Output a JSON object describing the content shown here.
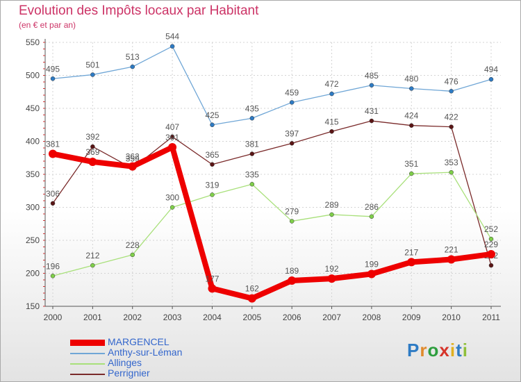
{
  "header": {
    "title": "Evolution des Impôts locaux par Habitant",
    "subtitle": "(en € et par an)"
  },
  "logo": {
    "text": "Proxiti",
    "letters": [
      "P",
      "r",
      "o",
      "x",
      "i",
      "t",
      "i"
    ]
  },
  "colors": {
    "title": "#cc3366",
    "legend_text": "#3366cc",
    "grid": "#d3d3d3",
    "axis": "#555555"
  },
  "chart_data": {
    "type": "line",
    "title": "Evolution des Impôts locaux par Habitant",
    "subtitle": "(en € et par an)",
    "xlabel": "",
    "ylabel": "",
    "categories": [
      "2000",
      "2001",
      "2002",
      "2003",
      "2004",
      "2005",
      "2006",
      "2007",
      "2008",
      "2009",
      "2010",
      "2011"
    ],
    "ylim": [
      150,
      550
    ],
    "yticks": [
      150,
      200,
      250,
      300,
      350,
      400,
      450,
      500,
      550
    ],
    "grid": true,
    "legend_position": "bottom-left",
    "series": [
      {
        "name": "Anthy-sur-Léman",
        "color": "#6fa6d6",
        "point_color": "#2e7bc4",
        "values": [
          495,
          501,
          513,
          544,
          425,
          435,
          459,
          472,
          485,
          480,
          476,
          494
        ]
      },
      {
        "name": "Perrignier",
        "color": "#7a2a2a",
        "point_color": "#5a1515",
        "values": [
          306,
          392,
          359,
          407,
          365,
          381,
          397,
          415,
          431,
          424,
          422,
          212
        ]
      },
      {
        "name": "Allinges",
        "color": "#a8e07a",
        "point_color": "#7fcf4a",
        "values": [
          196,
          212,
          228,
          300,
          319,
          335,
          279,
          289,
          286,
          351,
          353,
          252
        ]
      },
      {
        "name": "MARGENCEL",
        "color": "#ee0000",
        "point_color": "#ee0000",
        "values": [
          381,
          369,
          362,
          391,
          177,
          162,
          189,
          192,
          199,
          217,
          221,
          229
        ]
      }
    ],
    "legend_order": [
      "MARGENCEL",
      "Anthy-sur-Léman",
      "Allinges",
      "Perrignier"
    ]
  }
}
